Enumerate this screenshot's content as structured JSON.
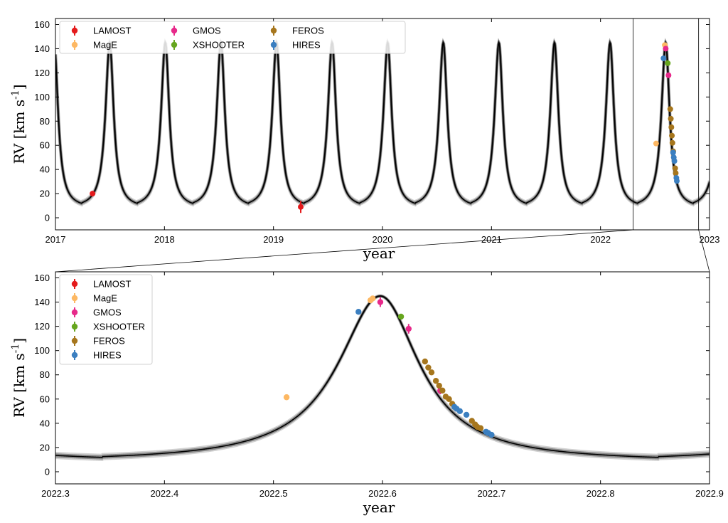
{
  "chart_data": [
    {
      "type": "scatter",
      "panel": "top",
      "xlabel": "year",
      "ylabel": "RV [km s$^{-1}$]",
      "xlim": [
        2017,
        2023
      ],
      "ylim": [
        -10,
        165
      ],
      "xticks": [
        "2017",
        "2018",
        "2019",
        "2020",
        "2021",
        "2022",
        "2023"
      ],
      "yticks": [
        "0",
        "20",
        "40",
        "60",
        "80",
        "100",
        "120",
        "140",
        "160"
      ],
      "legend_position": "upper-left",
      "legend_ncol": 4,
      "model_curve": {
        "period_years": 0.51,
        "peak_rv": 145,
        "min_rv": 8,
        "peak_epoch": 2022.598
      },
      "zoom_window": [
        2022.3,
        2022.9
      ],
      "series": [
        {
          "name": "LAMOST",
          "color": "#e41a1c",
          "points": [
            {
              "x": 2017.34,
              "y": 20,
              "err": 2
            },
            {
              "x": 2019.25,
              "y": 9,
              "err": 5
            }
          ]
        },
        {
          "name": "MagE",
          "color": "#fdb863",
          "points": [
            {
              "x": 2022.51,
              "y": 61.5
            },
            {
              "x": 2022.59,
              "y": 143
            }
          ]
        },
        {
          "name": "GMOS",
          "color": "#e7298a",
          "points": [
            {
              "x": 2022.598,
              "y": 140
            },
            {
              "x": 2022.624,
              "y": 118
            }
          ]
        },
        {
          "name": "XSHOOTER",
          "color": "#66a61e",
          "points": [
            {
              "x": 2022.617,
              "y": 128
            }
          ]
        },
        {
          "name": "FEROS",
          "color": "#a6761d",
          "points": [
            {
              "x": 2022.64,
              "y": 90
            },
            {
              "x": 2022.645,
              "y": 82
            },
            {
              "x": 2022.65,
              "y": 75
            },
            {
              "x": 2022.655,
              "y": 68
            },
            {
              "x": 2022.66,
              "y": 62
            },
            {
              "x": 2022.667,
              "y": 55
            },
            {
              "x": 2022.685,
              "y": 41
            },
            {
              "x": 2022.69,
              "y": 37
            }
          ]
        },
        {
          "name": "HIRES",
          "color": "#3b7fc0",
          "points": [
            {
              "x": 2022.578,
              "y": 132
            },
            {
              "x": 2022.666,
              "y": 54
            },
            {
              "x": 2022.672,
              "y": 50
            },
            {
              "x": 2022.678,
              "y": 47
            },
            {
              "x": 2022.696,
              "y": 33
            },
            {
              "x": 2022.7,
              "y": 30.5
            }
          ]
        }
      ]
    },
    {
      "type": "scatter",
      "panel": "bottom",
      "xlabel": "year",
      "ylabel": "RV [km s$^{-1}$]",
      "xlim": [
        2022.3,
        2022.9
      ],
      "ylim": [
        -10,
        165
      ],
      "xticks": [
        "2022.3",
        "2022.4",
        "2022.5",
        "2022.6",
        "2022.7",
        "2022.8",
        "2022.9"
      ],
      "yticks": [
        "0",
        "20",
        "40",
        "60",
        "80",
        "100",
        "120",
        "140",
        "160"
      ],
      "legend_position": "upper-left",
      "legend_ncol": 1,
      "model_curve": {
        "period_years": 0.51,
        "peak_rv": 145,
        "min_rv": 8,
        "peak_epoch": 2022.598
      },
      "series": [
        {
          "name": "LAMOST",
          "color": "#e41a1c",
          "points": []
        },
        {
          "name": "MagE",
          "color": "#fdb863",
          "points": [
            {
              "x": 2022.512,
              "y": 61.5,
              "err": 2
            },
            {
              "x": 2022.589,
              "y": 141.5,
              "err": 2
            },
            {
              "x": 2022.591,
              "y": 143,
              "err": 2
            }
          ]
        },
        {
          "name": "GMOS",
          "color": "#e7298a",
          "points": [
            {
              "x": 2022.598,
              "y": 140,
              "err": 4
            },
            {
              "x": 2022.624,
              "y": 118,
              "err": 4
            },
            {
              "x": 2022.653,
              "y": 67,
              "err": 3
            }
          ]
        },
        {
          "name": "XSHOOTER",
          "color": "#66a61e",
          "points": [
            {
              "x": 2022.617,
              "y": 128,
              "err": 2
            }
          ]
        },
        {
          "name": "FEROS",
          "color": "#a6761d",
          "points": [
            {
              "x": 2022.639,
              "y": 91
            },
            {
              "x": 2022.642,
              "y": 86
            },
            {
              "x": 2022.645,
              "y": 82
            },
            {
              "x": 2022.649,
              "y": 75
            },
            {
              "x": 2022.652,
              "y": 71
            },
            {
              "x": 2022.655,
              "y": 67
            },
            {
              "x": 2022.658,
              "y": 62
            },
            {
              "x": 2022.661,
              "y": 60
            },
            {
              "x": 2022.664,
              "y": 56
            },
            {
              "x": 2022.682,
              "y": 42
            },
            {
              "x": 2022.685,
              "y": 39
            },
            {
              "x": 2022.687,
              "y": 37
            },
            {
              "x": 2022.69,
              "y": 36
            }
          ]
        },
        {
          "name": "HIRES",
          "color": "#3b7fc0",
          "points": [
            {
              "x": 2022.578,
              "y": 132
            },
            {
              "x": 2022.666,
              "y": 53.5
            },
            {
              "x": 2022.668,
              "y": 52
            },
            {
              "x": 2022.671,
              "y": 50
            },
            {
              "x": 2022.677,
              "y": 47
            },
            {
              "x": 2022.695,
              "y": 33
            },
            {
              "x": 2022.697,
              "y": 32
            },
            {
              "x": 2022.7,
              "y": 30.5
            }
          ]
        }
      ]
    }
  ]
}
